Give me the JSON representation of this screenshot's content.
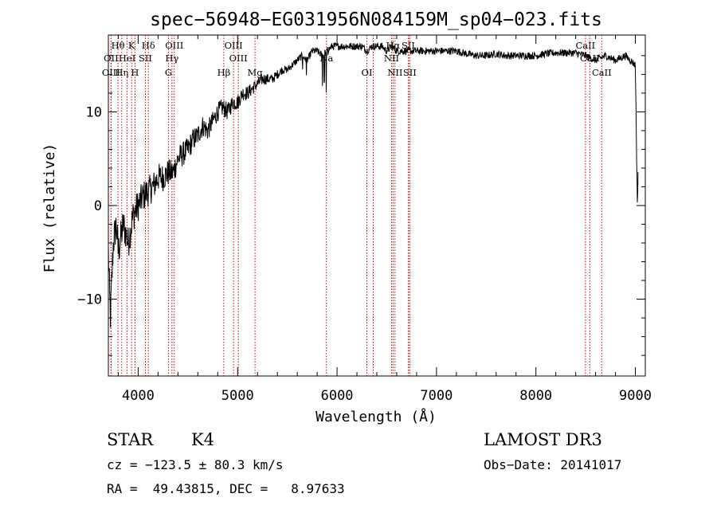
{
  "chart_data": {
    "type": "line",
    "title": "spec−56948−EG031956N084159M_sp04−023.fits",
    "xlabel": "Wavelength (Å)",
    "ylabel": "Flux (relative)",
    "xlim": [
      3700,
      9100
    ],
    "ylim": [
      -18.2,
      18.2
    ],
    "x_ticks": [
      4000,
      5000,
      6000,
      7000,
      8000,
      9000
    ],
    "x_tick_labels": [
      "4000",
      "5000",
      "6000",
      "7000",
      "8000",
      "9000"
    ],
    "y_ticks": [
      -10,
      0,
      10
    ],
    "y_tick_labels": [
      "−10",
      "0",
      "10"
    ],
    "spectrum_anchors": {
      "x": [
        3700,
        3720,
        3750,
        3780,
        3800,
        3850,
        3900,
        3950,
        4000,
        4050,
        4100,
        4150,
        4200,
        4250,
        4300,
        4350,
        4400,
        4450,
        4500,
        4550,
        4600,
        4650,
        4700,
        4750,
        4800,
        4850,
        4900,
        4950,
        5000,
        5050,
        5100,
        5150,
        5200,
        5250,
        5300,
        5350,
        5400,
        5450,
        5500,
        5550,
        5600,
        5650,
        5700,
        5750,
        5800,
        5850,
        5900,
        5950,
        6000,
        6050,
        6100,
        6150,
        6200,
        6250,
        6300,
        6350,
        6400,
        6450,
        6500,
        6550,
        6600,
        6650,
        6700,
        6750,
        6800,
        6900,
        7000,
        7100,
        7200,
        7300,
        7400,
        7500,
        7600,
        7700,
        7800,
        7900,
        8000,
        8100,
        8200,
        8300,
        8400,
        8500,
        8600,
        8700,
        8800,
        8900,
        9000,
        9020,
        9030
      ],
      "y": [
        -5,
        -12,
        -4,
        -2,
        -5,
        -2,
        -4,
        -1,
        0,
        1,
        1.5,
        2,
        3,
        3,
        3.5,
        3.5,
        5,
        5.5,
        6,
        7,
        7.5,
        8.5,
        8,
        9,
        10,
        10.5,
        10,
        11,
        11,
        12,
        12,
        12.5,
        13,
        13.5,
        13.5,
        13.5,
        14,
        14.5,
        14.5,
        15,
        15.5,
        16,
        15.5,
        16.5,
        16.5,
        16,
        16.5,
        17,
        17,
        17,
        17,
        17,
        17,
        17,
        16.5,
        17,
        17,
        17,
        16.5,
        17,
        16.5,
        16.5,
        16.5,
        16.5,
        16.5,
        16.5,
        16.5,
        16.5,
        16.5,
        16.2,
        16,
        16,
        16.2,
        16,
        16,
        16,
        16,
        16.2,
        16.3,
        16.3,
        16.3,
        16,
        15.5,
        16,
        15.5,
        16,
        15,
        0,
        5
      ],
      "noise_sigma_blue": 2.0,
      "noise_sigma_red": 0.4
    },
    "spectral_lines": [
      {
        "label": "Hθ",
        "wavelength": 3797,
        "row": 1
      },
      {
        "label": "OII",
        "wavelength": 3727,
        "row": 2
      },
      {
        "label": "OIII",
        "wavelength": 3727,
        "row": 3
      },
      {
        "label": "K",
        "wavelength": 3934,
        "row": 1
      },
      {
        "label": "HeI",
        "wavelength": 3889,
        "row": 2
      },
      {
        "label": "Hη",
        "wavelength": 3835,
        "row": 3
      },
      {
        "label": "H",
        "wavelength": 3968,
        "row": 3
      },
      {
        "label": "SII",
        "wavelength": 4072,
        "row": 2
      },
      {
        "label": "Hδ",
        "wavelength": 4102,
        "row": 1
      },
      {
        "label": "OIII",
        "wavelength": 4363,
        "row": 1
      },
      {
        "label": "Hγ",
        "wavelength": 4340,
        "row": 2
      },
      {
        "label": "G",
        "wavelength": 4305,
        "row": 3
      },
      {
        "label": "Hβ",
        "wavelength": 4861,
        "row": 3
      },
      {
        "label": "OIII",
        "wavelength": 4959,
        "row": 1
      },
      {
        "label": "OIII",
        "wavelength": 5007,
        "row": 2
      },
      {
        "label": "Mg",
        "wavelength": 5175,
        "row": 3
      },
      {
        "label": "Na",
        "wavelength": 5893,
        "row": 2
      },
      {
        "label": "OI",
        "wavelength": 6300,
        "row": 3
      },
      {
        "label": "Hα",
        "wavelength": 6563,
        "row": 1
      },
      {
        "label": "NII",
        "wavelength": 6548,
        "row": 2
      },
      {
        "label": "NII",
        "wavelength": 6583,
        "row": 3
      },
      {
        "label": "SII",
        "wavelength": 6716,
        "row": 1
      },
      {
        "label": "SII",
        "wavelength": 6731,
        "row": 3
      },
      {
        "label": "CaII",
        "wavelength": 8498,
        "row": 1
      },
      {
        "label": "CaII",
        "wavelength": 8542,
        "row": 2
      },
      {
        "label": "CaII",
        "wavelength": 8662,
        "row": 3
      }
    ],
    "marker_lines_extra": [
      6364,
      6730
    ]
  },
  "info": {
    "class_label": "STAR",
    "subclass": "K4",
    "survey": "LAMOST DR3",
    "cz": "cz = −123.5 ± 80.3 km/s",
    "obs_date": "Obs−Date: 20141017",
    "radec": "RA =  49.43815, DEC =   8.97633"
  }
}
